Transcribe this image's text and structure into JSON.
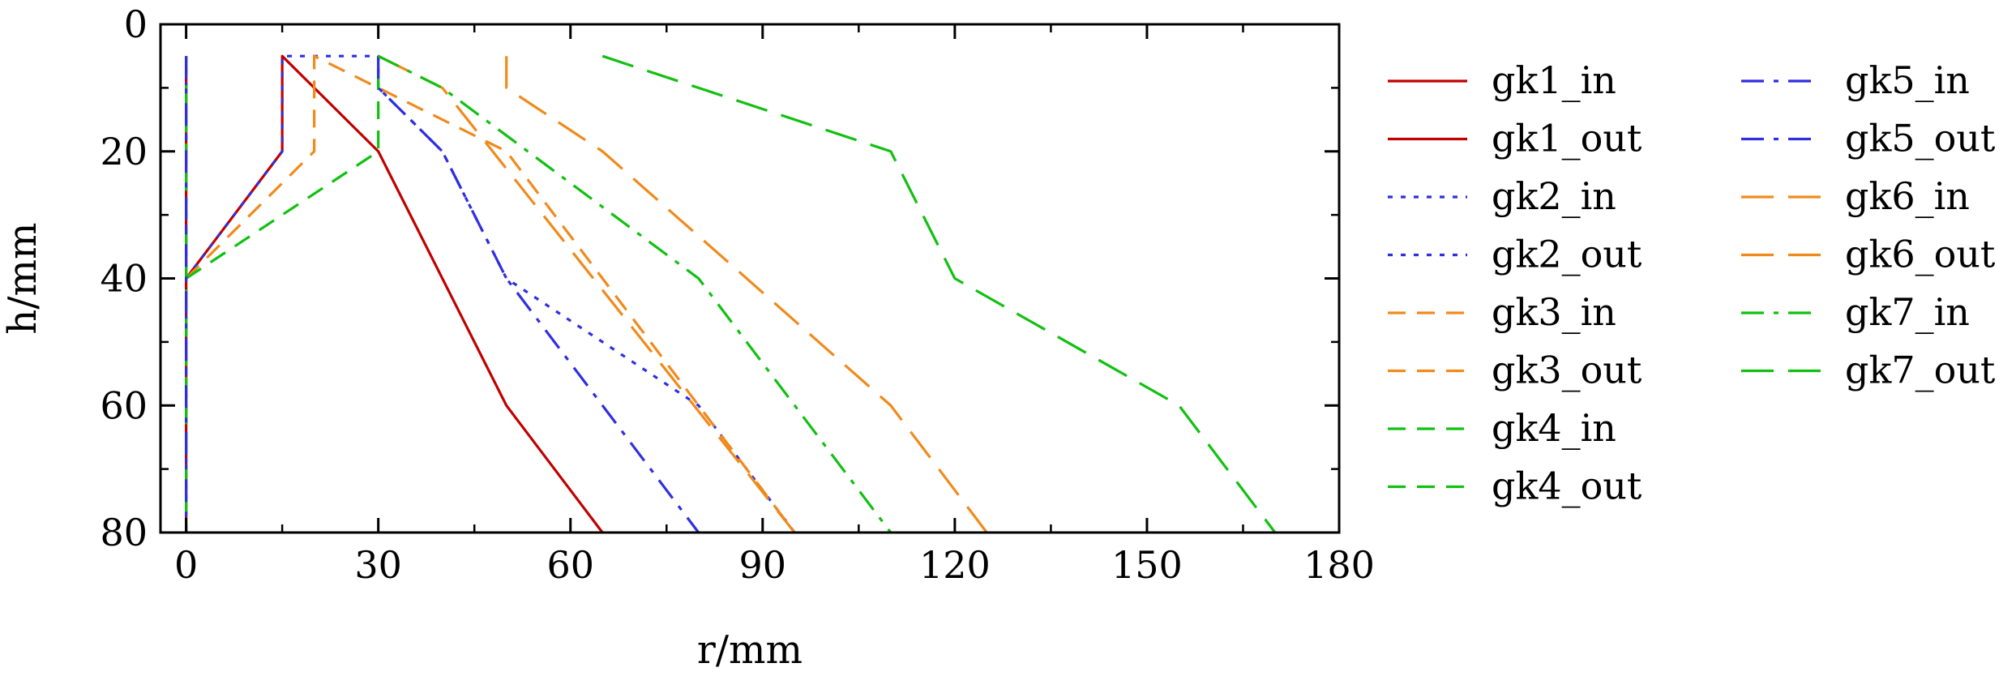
{
  "chart_data": {
    "type": "line",
    "xlabel": "r/mm",
    "ylabel": "h/mm",
    "xlim": [
      -4,
      180
    ],
    "ylim": [
      0,
      80
    ],
    "y_inverted": true,
    "x_ticks": [
      0,
      30,
      60,
      90,
      120,
      150,
      180
    ],
    "y_ticks": [
      0,
      20,
      40,
      60,
      80
    ],
    "grid": false,
    "legend_position": "right",
    "series": [
      {
        "name": "gk1_in",
        "color": "#c00000",
        "dash": "solid",
        "x": [
          0,
          0
        ],
        "y": [
          5,
          80
        ]
      },
      {
        "name": "gk1_out",
        "color": "#c00000",
        "dash": "solid",
        "x": [
          0,
          15,
          15,
          30,
          50,
          65
        ],
        "y": [
          40,
          20,
          5,
          20,
          60,
          80
        ]
      },
      {
        "name": "gk2_in",
        "color": "#2f2fe0",
        "dash": "dotted",
        "x": [
          0,
          0
        ],
        "y": [
          5,
          80
        ]
      },
      {
        "name": "gk2_out",
        "color": "#2f2fe0",
        "dash": "dotted",
        "x": [
          0,
          15,
          15,
          30,
          30,
          40,
          50,
          80,
          95
        ],
        "y": [
          40,
          20,
          5,
          5,
          10,
          20,
          40,
          60,
          80
        ]
      },
      {
        "name": "gk3_in",
        "color": "#f08a1c",
        "dash": "dashed",
        "x": [
          0,
          0
        ],
        "y": [
          5,
          80
        ]
      },
      {
        "name": "gk3_out",
        "color": "#f08a1c",
        "dash": "dashed",
        "x": [
          0,
          20,
          20,
          50,
          65,
          80,
          95
        ],
        "y": [
          40,
          20,
          5,
          20,
          40,
          60,
          80
        ]
      },
      {
        "name": "gk4_in",
        "color": "#11c011",
        "dash": "dashed",
        "x": [
          0,
          0
        ],
        "y": [
          5,
          80
        ]
      },
      {
        "name": "gk4_out",
        "color": "#11c011",
        "dash": "dashed",
        "x": [
          0,
          30,
          30
        ],
        "y": [
          40,
          20,
          5
        ]
      },
      {
        "name": "gk5_in",
        "color": "#2f2fe0",
        "dash": "dashdot",
        "x": [
          0,
          0
        ],
        "y": [
          5,
          80
        ]
      },
      {
        "name": "gk5_out",
        "color": "#2f2fe0",
        "dash": "dashdot",
        "x": [
          30,
          30,
          40,
          50,
          80
        ],
        "y": [
          5,
          10,
          20,
          40,
          80
        ]
      },
      {
        "name": "gk6_in",
        "color": "#f08a1c",
        "dash": "longdash",
        "x": [
          50,
          50,
          65,
          110,
          125
        ],
        "y": [
          5,
          10,
          20,
          60,
          80
        ]
      },
      {
        "name": "gk6_out",
        "color": "#f08a1c",
        "dash": "longdash",
        "x": [
          30,
          40,
          95
        ],
        "y": [
          5,
          10,
          80
        ]
      },
      {
        "name": "gk7_in",
        "color": "#11c011",
        "dash": "dashdot",
        "x": [
          30,
          40,
          80,
          110
        ],
        "y": [
          5,
          10,
          40,
          80
        ]
      },
      {
        "name": "gk7_out",
        "color": "#11c011",
        "dash": "longdash",
        "x": [
          65,
          110,
          120,
          155,
          170
        ],
        "y": [
          5,
          20,
          40,
          60,
          80
        ]
      }
    ]
  }
}
